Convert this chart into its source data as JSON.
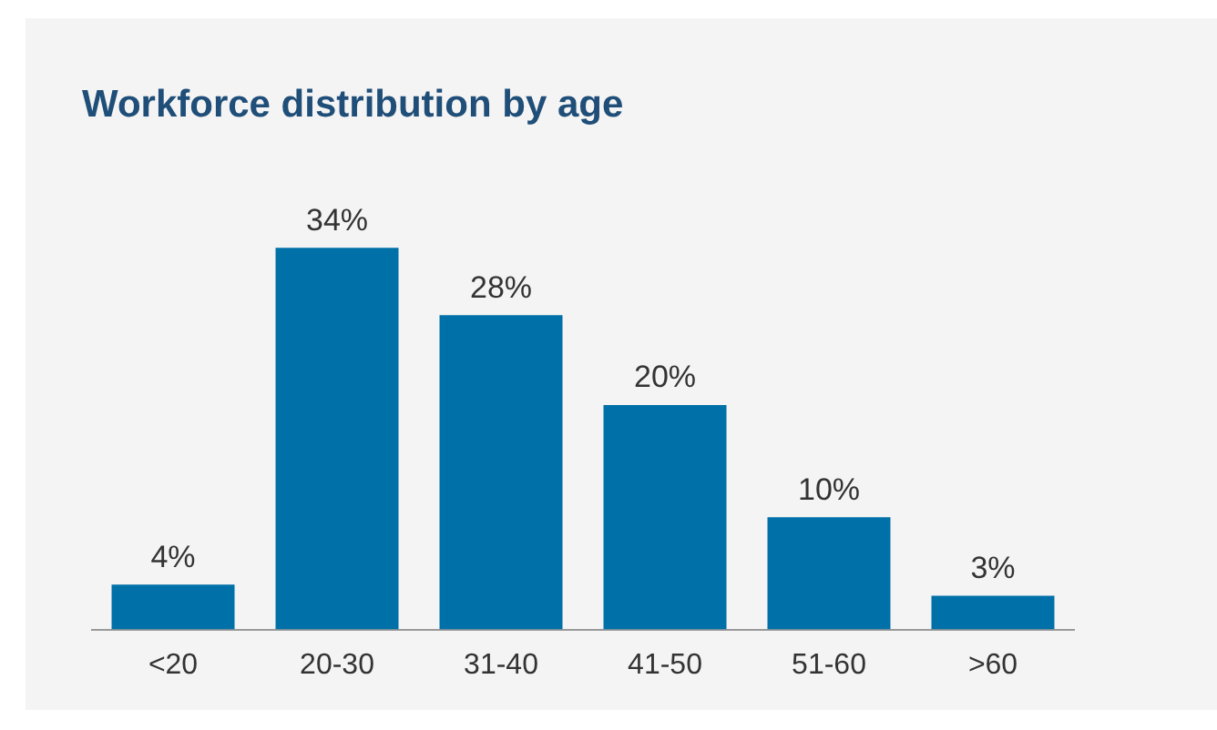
{
  "chart_data": {
    "type": "bar",
    "title": "Workforce distribution by age",
    "categories": [
      "<20",
      "20-30",
      "31-40",
      "41-50",
      "51-60",
      ">60"
    ],
    "values": [
      4,
      34,
      28,
      20,
      10,
      3
    ],
    "value_labels": [
      "4%",
      "34%",
      "28%",
      "20%",
      "10%",
      "3%"
    ],
    "color": "#0070a8",
    "grid": false,
    "legend": false
  }
}
